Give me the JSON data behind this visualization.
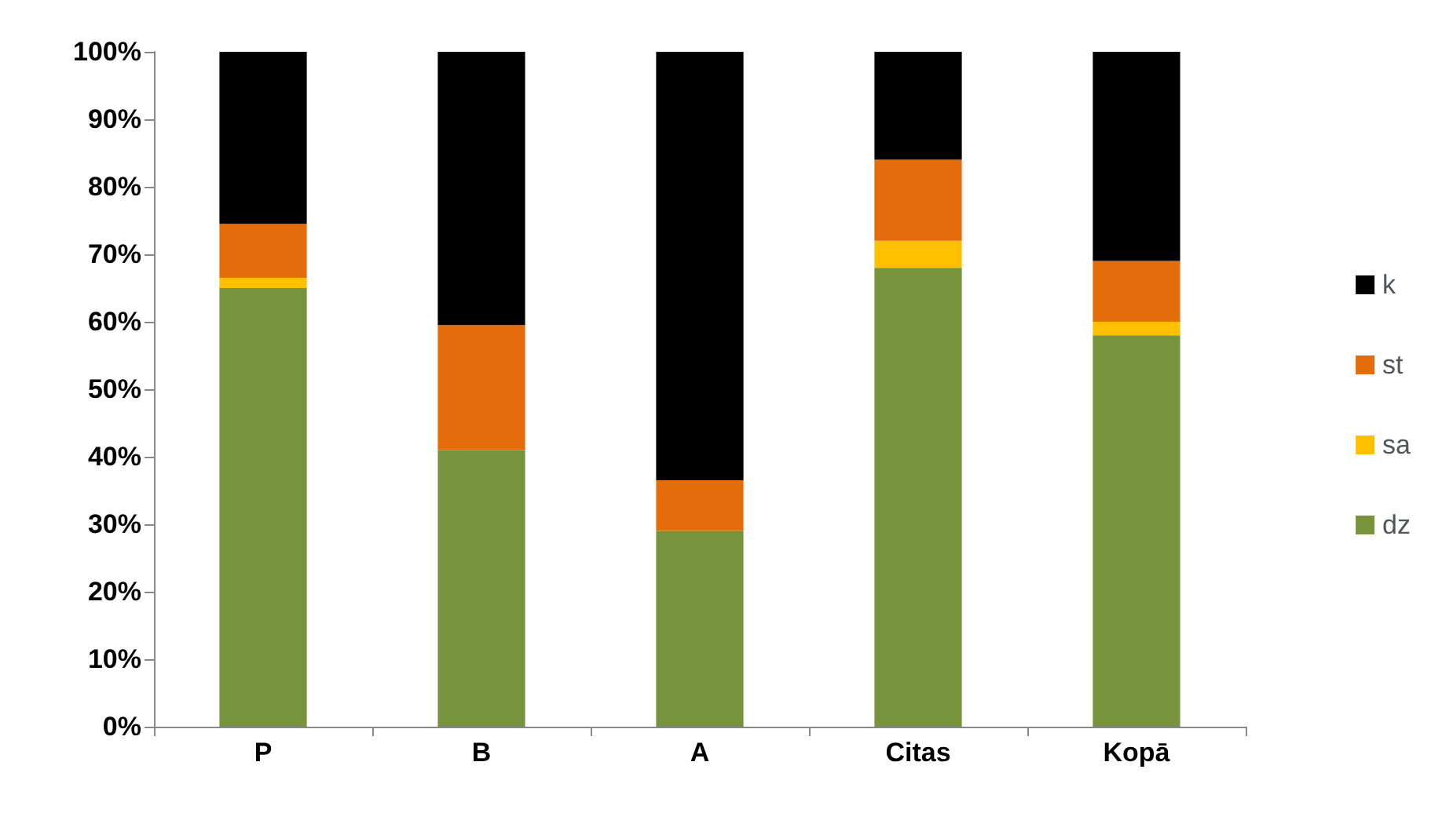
{
  "chart_data": {
    "type": "bar",
    "stacked": true,
    "categories": [
      "P",
      "B",
      "A",
      "Citas",
      "Kopā"
    ],
    "series": [
      {
        "name": "dz",
        "color": "#77933c",
        "values": [
          65,
          41,
          29,
          68,
          58
        ]
      },
      {
        "name": "sa",
        "color": "#ffc000",
        "values": [
          1.5,
          0,
          0,
          4,
          2
        ]
      },
      {
        "name": "st",
        "color": "#e46c0a",
        "values": [
          8,
          18.5,
          7.5,
          12,
          9
        ]
      },
      {
        "name": "k",
        "color": "#000000",
        "values": [
          25.5,
          40.5,
          63.5,
          16,
          31
        ]
      }
    ],
    "ylim": [
      0,
      100
    ],
    "yticks": [
      {
        "value": 0,
        "label": "0%"
      },
      {
        "value": 10,
        "label": "10%"
      },
      {
        "value": 20,
        "label": "20%"
      },
      {
        "value": 30,
        "label": "30%"
      },
      {
        "value": 40,
        "label": "40%"
      },
      {
        "value": 50,
        "label": "50%"
      },
      {
        "value": 60,
        "label": "60%"
      },
      {
        "value": 70,
        "label": "70%"
      },
      {
        "value": 80,
        "label": "80%"
      },
      {
        "value": 90,
        "label": "90%"
      },
      {
        "value": 100,
        "label": "100%"
      }
    ],
    "grid": false,
    "legend": "right"
  }
}
